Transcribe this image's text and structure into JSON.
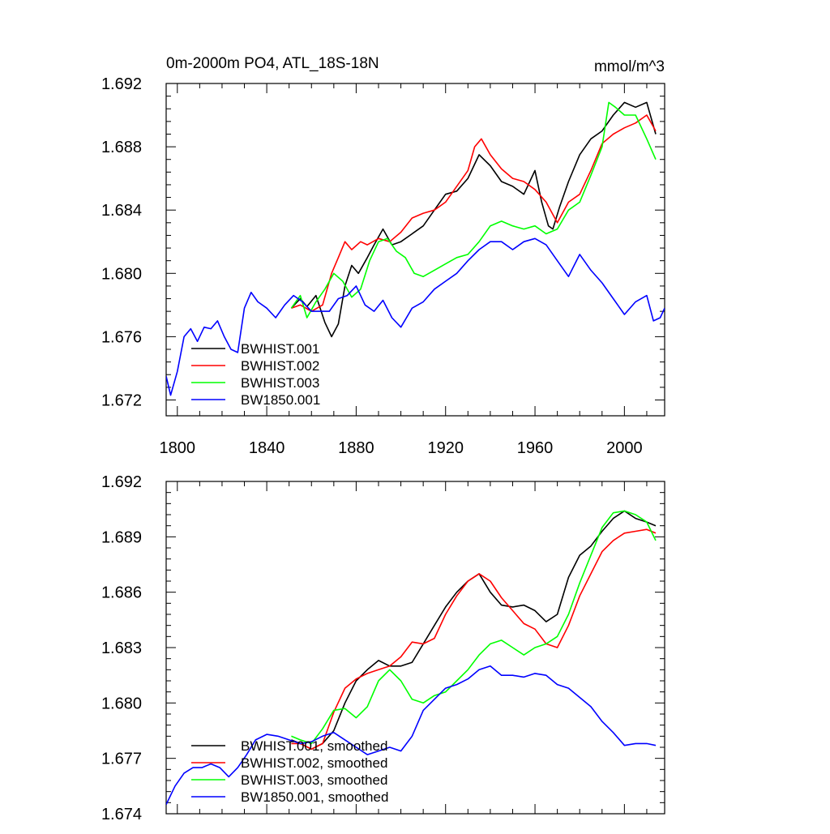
{
  "chart_data": [
    {
      "type": "line",
      "title": "0m-2000m PO4, ATL_18S-18N",
      "units": "mmol/m^3",
      "xlim": [
        1795,
        2018
      ],
      "ylim": [
        1.671,
        1.692
      ],
      "x_ticks": [
        1800,
        1840,
        1880,
        1920,
        1960,
        2000
      ],
      "x_tick_labels": [
        "1800",
        "1840",
        "1880",
        "1920",
        "1960",
        "2000"
      ],
      "y_ticks": [
        1.672,
        1.676,
        1.68,
        1.684,
        1.688,
        1.692
      ],
      "y_tick_labels": [
        "1.672",
        "1.676",
        "1.680",
        "1.684",
        "1.688",
        "1.692"
      ],
      "legend_position": "bottom-left",
      "series": [
        {
          "name": "BWHIST.001",
          "color": "#000000",
          "x": [
            1851,
            1855,
            1858,
            1862,
            1866,
            1869,
            1872,
            1875,
            1878,
            1881,
            1885,
            1888,
            1892,
            1896,
            1900,
            1905,
            1910,
            1915,
            1920,
            1925,
            1930,
            1935,
            1940,
            1945,
            1950,
            1955,
            1960,
            1963,
            1966,
            1968,
            1971,
            1975,
            1980,
            1985,
            1990,
            1995,
            2000,
            2005,
            2010,
            2014
          ],
          "y": [
            1.6778,
            1.6784,
            1.6779,
            1.6786,
            1.6769,
            1.676,
            1.6768,
            1.6792,
            1.6805,
            1.68,
            1.681,
            1.6818,
            1.6828,
            1.6818,
            1.682,
            1.6825,
            1.683,
            1.684,
            1.685,
            1.6852,
            1.686,
            1.6875,
            1.6868,
            1.6858,
            1.6855,
            1.685,
            1.6865,
            1.6845,
            1.683,
            1.6828,
            1.6842,
            1.6858,
            1.6875,
            1.6885,
            1.689,
            1.69,
            1.6908,
            1.6905,
            1.6908,
            1.6888
          ]
        },
        {
          "name": "BWHIST.002",
          "color": "#ff0000",
          "x": [
            1851,
            1855,
            1860,
            1865,
            1869,
            1872,
            1875,
            1878,
            1882,
            1885,
            1890,
            1895,
            1900,
            1905,
            1910,
            1915,
            1920,
            1925,
            1930,
            1933,
            1936,
            1940,
            1945,
            1950,
            1955,
            1960,
            1965,
            1970,
            1975,
            1980,
            1985,
            1990,
            1995,
            2000,
            2005,
            2010,
            2014
          ],
          "y": [
            1.6778,
            1.678,
            1.6776,
            1.678,
            1.68,
            1.681,
            1.682,
            1.6815,
            1.682,
            1.6818,
            1.6822,
            1.682,
            1.6826,
            1.6835,
            1.6838,
            1.684,
            1.6845,
            1.6855,
            1.6865,
            1.688,
            1.6885,
            1.6875,
            1.6866,
            1.686,
            1.6858,
            1.6853,
            1.6845,
            1.6832,
            1.6845,
            1.685,
            1.6865,
            1.6882,
            1.6888,
            1.6892,
            1.6895,
            1.69,
            1.689
          ]
        },
        {
          "name": "BWHIST.003",
          "color": "#00ff00",
          "x": [
            1851,
            1855,
            1858,
            1862,
            1866,
            1870,
            1874,
            1878,
            1882,
            1886,
            1890,
            1894,
            1898,
            1902,
            1906,
            1910,
            1915,
            1920,
            1925,
            1930,
            1935,
            1940,
            1945,
            1950,
            1955,
            1960,
            1965,
            1970,
            1975,
            1980,
            1985,
            1990,
            1993,
            1996,
            2000,
            2005,
            2010,
            2014
          ],
          "y": [
            1.6778,
            1.6786,
            1.6772,
            1.6782,
            1.679,
            1.68,
            1.6795,
            1.6785,
            1.679,
            1.6808,
            1.682,
            1.6822,
            1.6814,
            1.681,
            1.68,
            1.6798,
            1.6802,
            1.6806,
            1.681,
            1.6812,
            1.682,
            1.683,
            1.6833,
            1.683,
            1.6828,
            1.683,
            1.6825,
            1.6828,
            1.684,
            1.6845,
            1.6862,
            1.688,
            1.6908,
            1.6905,
            1.69,
            1.69,
            1.6885,
            1.6872
          ]
        },
        {
          "name": "BW1850.001",
          "color": "#0000ff",
          "x": [
            1795,
            1797,
            1800,
            1803,
            1806,
            1809,
            1812,
            1815,
            1818,
            1821,
            1824,
            1827,
            1830,
            1833,
            1836,
            1840,
            1844,
            1848,
            1852,
            1856,
            1860,
            1864,
            1868,
            1872,
            1876,
            1880,
            1884,
            1888,
            1892,
            1896,
            1900,
            1905,
            1910,
            1915,
            1920,
            1925,
            1930,
            1935,
            1940,
            1945,
            1950,
            1955,
            1960,
            1965,
            1970,
            1975,
            1980,
            1985,
            1990,
            1995,
            2000,
            2005,
            2010,
            2013,
            2016,
            2018
          ],
          "y": [
            1.6735,
            1.6723,
            1.6738,
            1.676,
            1.6765,
            1.6757,
            1.6766,
            1.6765,
            1.677,
            1.676,
            1.6752,
            1.675,
            1.6778,
            1.6788,
            1.6782,
            1.6778,
            1.6772,
            1.678,
            1.6786,
            1.6782,
            1.6776,
            1.6776,
            1.6776,
            1.6784,
            1.6786,
            1.6792,
            1.678,
            1.6776,
            1.6783,
            1.6772,
            1.6766,
            1.6778,
            1.6782,
            1.679,
            1.6795,
            1.68,
            1.6808,
            1.6815,
            1.682,
            1.682,
            1.6815,
            1.682,
            1.6822,
            1.6818,
            1.6808,
            1.6798,
            1.6812,
            1.6802,
            1.6794,
            1.6784,
            1.6774,
            1.6782,
            1.6786,
            1.677,
            1.6772,
            1.6778
          ]
        }
      ]
    },
    {
      "type": "line",
      "xlim": [
        1795,
        2018
      ],
      "ylim": [
        1.674,
        1.692
      ],
      "x_ticks": [
        1800,
        1840,
        1880,
        1920,
        1960,
        2000
      ],
      "y_ticks": [
        1.674,
        1.677,
        1.68,
        1.683,
        1.686,
        1.689,
        1.692
      ],
      "y_tick_labels": [
        "1.674",
        "1.677",
        "1.680",
        "1.683",
        "1.686",
        "1.689",
        "1.692"
      ],
      "legend_position": "bottom-left",
      "series": [
        {
          "name": "BWHIST.001, smoothed",
          "color": "#000000",
          "x": [
            1851,
            1855,
            1860,
            1865,
            1870,
            1875,
            1880,
            1885,
            1890,
            1895,
            1900,
            1905,
            1910,
            1915,
            1920,
            1925,
            1930,
            1935,
            1940,
            1945,
            1950,
            1955,
            1960,
            1965,
            1970,
            1975,
            1980,
            1985,
            1990,
            1995,
            2000,
            2005,
            2010,
            2014
          ],
          "y": [
            1.678,
            1.6778,
            1.6775,
            1.6778,
            1.6785,
            1.68,
            1.6812,
            1.6818,
            1.6823,
            1.682,
            1.682,
            1.6822,
            1.6832,
            1.6842,
            1.6852,
            1.686,
            1.6866,
            1.687,
            1.686,
            1.6853,
            1.6852,
            1.6853,
            1.685,
            1.6844,
            1.6848,
            1.6868,
            1.688,
            1.6885,
            1.6893,
            1.69,
            1.6904,
            1.69,
            1.6898,
            1.6896
          ]
        },
        {
          "name": "BWHIST.002, smoothed",
          "color": "#ff0000",
          "x": [
            1851,
            1855,
            1860,
            1865,
            1870,
            1875,
            1880,
            1885,
            1890,
            1895,
            1900,
            1905,
            1910,
            1915,
            1920,
            1925,
            1930,
            1935,
            1940,
            1945,
            1950,
            1955,
            1960,
            1965,
            1970,
            1975,
            1980,
            1985,
            1990,
            1995,
            2000,
            2005,
            2010,
            2014
          ],
          "y": [
            1.6778,
            1.6778,
            1.6775,
            1.6778,
            1.6795,
            1.6808,
            1.6813,
            1.6816,
            1.6818,
            1.682,
            1.6825,
            1.6833,
            1.6832,
            1.6835,
            1.6848,
            1.6858,
            1.6866,
            1.687,
            1.6866,
            1.6857,
            1.685,
            1.6843,
            1.684,
            1.6832,
            1.683,
            1.6842,
            1.6858,
            1.687,
            1.6882,
            1.6888,
            1.6892,
            1.6893,
            1.6894,
            1.6892
          ]
        },
        {
          "name": "BWHIST.003, smoothed",
          "color": "#00ff00",
          "x": [
            1851,
            1855,
            1860,
            1865,
            1870,
            1875,
            1880,
            1885,
            1890,
            1895,
            1900,
            1905,
            1910,
            1915,
            1920,
            1925,
            1930,
            1935,
            1940,
            1945,
            1950,
            1955,
            1960,
            1965,
            1970,
            1975,
            1980,
            1985,
            1990,
            1995,
            2000,
            2005,
            2010,
            2014
          ],
          "y": [
            1.6782,
            1.678,
            1.6778,
            1.6786,
            1.6796,
            1.6797,
            1.6792,
            1.6798,
            1.6812,
            1.6818,
            1.6812,
            1.6802,
            1.68,
            1.6804,
            1.6806,
            1.6812,
            1.6818,
            1.6826,
            1.6832,
            1.6834,
            1.683,
            1.6826,
            1.683,
            1.6832,
            1.6836,
            1.6848,
            1.6865,
            1.688,
            1.6895,
            1.6903,
            1.6904,
            1.6902,
            1.6898,
            1.6888
          ]
        },
        {
          "name": "BW1850.001, smoothed",
          "color": "#0000ff",
          "x": [
            1795,
            1799,
            1803,
            1807,
            1811,
            1815,
            1819,
            1823,
            1827,
            1831,
            1835,
            1840,
            1845,
            1850,
            1855,
            1860,
            1865,
            1870,
            1875,
            1880,
            1885,
            1890,
            1895,
            1900,
            1905,
            1910,
            1915,
            1920,
            1925,
            1930,
            1935,
            1940,
            1945,
            1950,
            1955,
            1960,
            1965,
            1970,
            1975,
            1980,
            1985,
            1990,
            1995,
            2000,
            2005,
            2010,
            2014
          ],
          "y": [
            1.6745,
            1.6755,
            1.6762,
            1.6765,
            1.6765,
            1.6767,
            1.6765,
            1.676,
            1.6765,
            1.6772,
            1.678,
            1.6783,
            1.6782,
            1.678,
            1.6778,
            1.6779,
            1.6782,
            1.6784,
            1.678,
            1.6776,
            1.6772,
            1.6774,
            1.6776,
            1.6774,
            1.6782,
            1.6796,
            1.6802,
            1.6808,
            1.681,
            1.6813,
            1.6818,
            1.682,
            1.6815,
            1.6815,
            1.6814,
            1.6816,
            1.6815,
            1.681,
            1.6808,
            1.6803,
            1.6798,
            1.679,
            1.6784,
            1.6777,
            1.6778,
            1.6778,
            1.6777
          ]
        }
      ]
    }
  ]
}
